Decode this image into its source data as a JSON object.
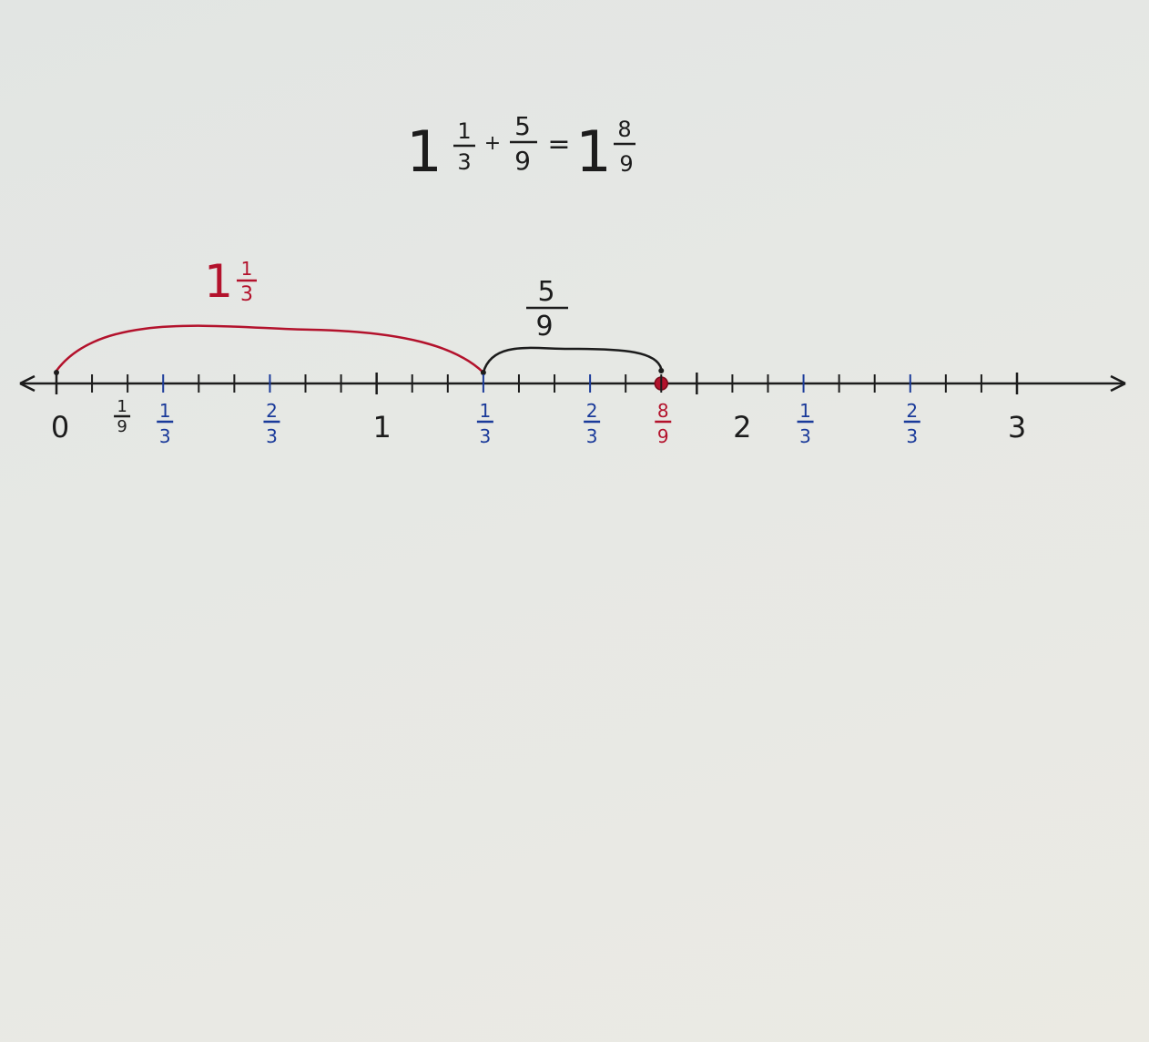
{
  "colors": {
    "ink": "#1c1c1c",
    "red": "#b3122c",
    "blue": "#1a3a9a"
  },
  "equation": {
    "a_whole": "1",
    "a_num": "1",
    "a_den": "3",
    "plus": "+",
    "b_num": "5",
    "b_den": "9",
    "equals": "=",
    "c_whole": "1",
    "c_num": "8",
    "c_den": "9"
  },
  "jumps": [
    {
      "name": "first-jump",
      "label_whole": "1",
      "label_num": "1",
      "label_den": "3",
      "from": 0,
      "to": 1.3333,
      "color": "red"
    },
    {
      "name": "second-jump",
      "label_whole": "",
      "label_num": "5",
      "label_den": "9",
      "from": 1.3333,
      "to": 1.8889,
      "color": "ink"
    }
  ],
  "number_line": {
    "min": 0,
    "max": 3,
    "step_ninths": 27,
    "result_value": 1.8889,
    "labels": [
      {
        "name": "label-0",
        "value": 0,
        "whole": "0",
        "color": "ink"
      },
      {
        "name": "label-1-9",
        "value": 0.1111,
        "num": "1",
        "den": "9",
        "color": "ink"
      },
      {
        "name": "label-1-3",
        "value": 0.3333,
        "num": "1",
        "den": "3",
        "color": "blue"
      },
      {
        "name": "label-2-3",
        "value": 0.6667,
        "num": "2",
        "den": "3",
        "color": "blue"
      },
      {
        "name": "label-1",
        "value": 1,
        "whole": "1",
        "color": "ink"
      },
      {
        "name": "label-1-1-3",
        "value": 1.3333,
        "num": "1",
        "den": "3",
        "color": "blue"
      },
      {
        "name": "label-1-2-3",
        "value": 1.6667,
        "num": "2",
        "den": "3",
        "color": "blue"
      },
      {
        "name": "label-1-8-9",
        "value": 1.8889,
        "num": "8",
        "den": "9",
        "color": "red"
      },
      {
        "name": "label-2",
        "value": 2,
        "whole": "2",
        "color": "ink"
      },
      {
        "name": "label-2-1-3",
        "value": 2.3333,
        "num": "1",
        "den": "3",
        "color": "blue"
      },
      {
        "name": "label-2-2-3",
        "value": 2.6667,
        "num": "2",
        "den": "3",
        "color": "blue"
      },
      {
        "name": "label-3",
        "value": 3,
        "whole": "3",
        "color": "ink"
      }
    ]
  }
}
